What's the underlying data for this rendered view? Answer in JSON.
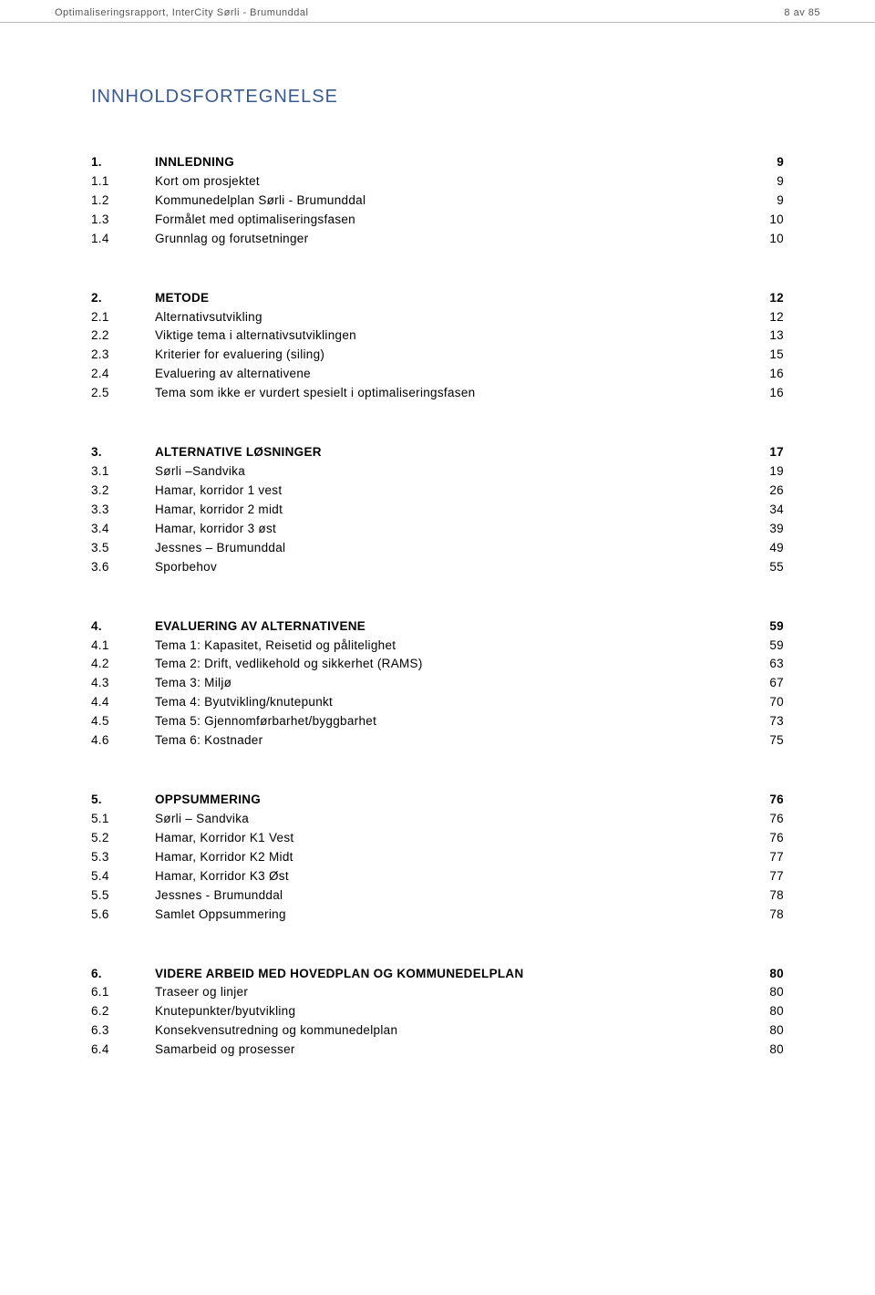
{
  "header": {
    "left": "Optimaliseringsrapport, InterCity Sørli - Brumunddal",
    "right": "8 av 85"
  },
  "title": "INNHOLDSFORTEGNELSE",
  "sections": [
    {
      "head": {
        "num": "1.",
        "label": "INNLEDNING",
        "page": "9"
      },
      "items": [
        {
          "num": "1.1",
          "label": "Kort om prosjektet",
          "page": "9"
        },
        {
          "num": "1.2",
          "label": "Kommunedelplan Sørli - Brumunddal",
          "page": "9"
        },
        {
          "num": "1.3",
          "label": "Formålet med optimaliseringsfasen",
          "page": "10"
        },
        {
          "num": "1.4",
          "label": "Grunnlag og forutsetninger",
          "page": "10"
        }
      ]
    },
    {
      "head": {
        "num": "2.",
        "label": "METODE",
        "page": "12"
      },
      "items": [
        {
          "num": "2.1",
          "label": "Alternativsutvikling",
          "page": "12"
        },
        {
          "num": "2.2",
          "label": "Viktige tema i alternativsutviklingen",
          "page": "13"
        },
        {
          "num": "2.3",
          "label": "Kriterier for evaluering (siling)",
          "page": "15"
        },
        {
          "num": "2.4",
          "label": "Evaluering av alternativene",
          "page": "16"
        },
        {
          "num": "2.5",
          "label": "Tema som ikke er vurdert spesielt i optimaliseringsfasen",
          "page": "16"
        }
      ]
    },
    {
      "head": {
        "num": "3.",
        "label": "ALTERNATIVE LØSNINGER",
        "page": "17"
      },
      "items": [
        {
          "num": "3.1",
          "label": "Sørli –Sandvika",
          "page": "19"
        },
        {
          "num": "3.2",
          "label": "Hamar, korridor 1 vest",
          "page": "26"
        },
        {
          "num": "3.3",
          "label": "Hamar, korridor 2 midt",
          "page": "34"
        },
        {
          "num": "3.4",
          "label": "Hamar, korridor 3 øst",
          "page": "39"
        },
        {
          "num": "3.5",
          "label": "Jessnes – Brumunddal",
          "page": "49"
        },
        {
          "num": "3.6",
          "label": "Sporbehov",
          "page": "55"
        }
      ]
    },
    {
      "head": {
        "num": "4.",
        "label": "EVALUERING AV ALTERNATIVENE",
        "page": "59"
      },
      "items": [
        {
          "num": "4.1",
          "label": "Tema 1: Kapasitet, Reisetid og pålitelighet",
          "page": "59"
        },
        {
          "num": "4.2",
          "label": "Tema 2: Drift, vedlikehold og sikkerhet (RAMS)",
          "page": "63"
        },
        {
          "num": "4.3",
          "label": "Tema 3: Miljø",
          "page": "67"
        },
        {
          "num": "4.4",
          "label": "Tema 4: Byutvikling/knutepunkt",
          "page": "70"
        },
        {
          "num": "4.5",
          "label": "Tema 5: Gjennomførbarhet/byggbarhet",
          "page": "73"
        },
        {
          "num": "4.6",
          "label": "Tema 6: Kostnader",
          "page": "75"
        }
      ]
    },
    {
      "head": {
        "num": "5.",
        "label": "OPPSUMMERING",
        "page": "76"
      },
      "items": [
        {
          "num": "5.1",
          "label": "Sørli – Sandvika",
          "page": "76"
        },
        {
          "num": "5.2",
          "label": "Hamar, Korridor K1 Vest",
          "page": "76"
        },
        {
          "num": "5.3",
          "label": "Hamar, Korridor K2 Midt",
          "page": "77"
        },
        {
          "num": "5.4",
          "label": "Hamar, Korridor K3 Øst",
          "page": "77"
        },
        {
          "num": "5.5",
          "label": "Jessnes - Brumunddal",
          "page": "78"
        },
        {
          "num": "5.6",
          "label": "Samlet Oppsummering",
          "page": "78"
        }
      ]
    },
    {
      "head": {
        "num": "6.",
        "label": "VIDERE ARBEID MED HOVEDPLAN OG KOMMUNEDELPLAN",
        "page": "80"
      },
      "items": [
        {
          "num": "6.1",
          "label": "Traseer og linjer",
          "page": "80"
        },
        {
          "num": "6.2",
          "label": "Knutepunkter/byutvikling",
          "page": "80"
        },
        {
          "num": "6.3",
          "label": "Konsekvensutredning og kommunedelplan",
          "page": "80"
        },
        {
          "num": "6.4",
          "label": "Samarbeid og prosesser",
          "page": "80"
        }
      ]
    }
  ]
}
